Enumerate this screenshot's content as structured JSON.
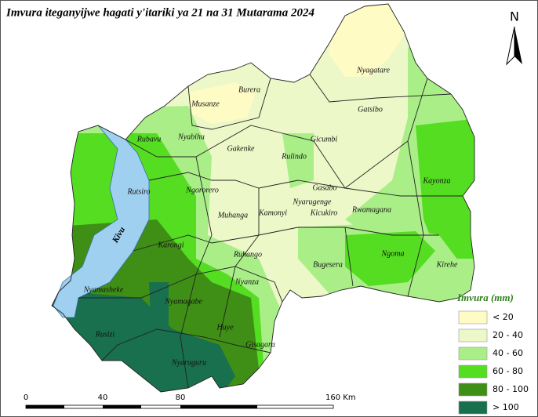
{
  "title": "Imvura iteganyijwe hagati y'itariki ya 21 na 31 Mutarama 2024",
  "north": "N",
  "lake": "Kivu",
  "districts": [
    "Nyagatare",
    "Burera",
    "Musanze",
    "Gicumbi",
    "Gatsibo",
    "Rubavu",
    "Nyabihu",
    "Gakenke",
    "Rulindo",
    "Kayonza",
    "Rutsiro",
    "Ngororero",
    "Gasabo",
    "Nyarugenge",
    "Kicukiro",
    "Rwamagana",
    "Muhanga",
    "Kamonyi",
    "Karongi",
    "Ruhango",
    "Bugesera",
    "Ngoma",
    "Kirehe",
    "Nyanza",
    "Nyamasheke",
    "Nyamagabe",
    "Huye",
    "Gisagara",
    "Rusizi",
    "Nyaruguru"
  ],
  "legend": {
    "title": "Imvura (mm)",
    "items": [
      {
        "label": "< 20",
        "color": "#fffbc4"
      },
      {
        "label": "20 - 40",
        "color": "#edf8c8"
      },
      {
        "label": "40 - 60",
        "color": "#aaee88"
      },
      {
        "label": "60 - 80",
        "color": "#55dd22"
      },
      {
        "label": "80 - 100",
        "color": "#3f8f16"
      },
      {
        "label": "> 100",
        "color": "#18704f"
      }
    ]
  },
  "scale_bar": {
    "labels": [
      "0",
      "40",
      "80",
      "160 Km"
    ]
  }
}
